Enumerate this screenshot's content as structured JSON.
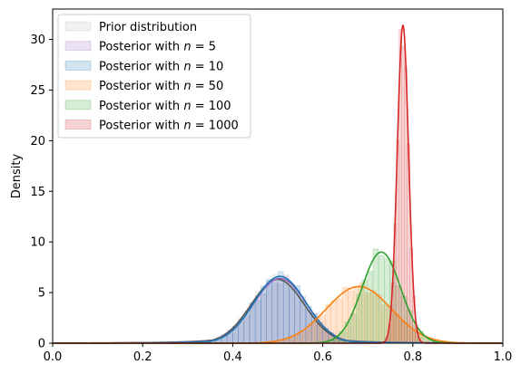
{
  "chart_data": {
    "type": "area",
    "title": "",
    "xlabel": "",
    "ylabel": "Density",
    "xlim": [
      0.0,
      1.0
    ],
    "ylim": [
      0,
      33
    ],
    "xticks": [
      0.0,
      0.2,
      0.4,
      0.6,
      0.8,
      1.0
    ],
    "xtick_labels": [
      "0.0",
      "0.2",
      "0.4",
      "0.6",
      "0.8",
      "1.0"
    ],
    "yticks": [
      0,
      5,
      10,
      15,
      20,
      25,
      30
    ],
    "ytick_labels": [
      "0",
      "5",
      "10",
      "15",
      "20",
      "25",
      "30"
    ],
    "grid": false,
    "legend_position": "top-left",
    "series": [
      {
        "name": "Prior distribution",
        "color": "#555555",
        "hist_color": "#bbbbbb",
        "mean": 0.5,
        "sd": 0.059,
        "tail_scale": 0.12,
        "peak": 6.3
      },
      {
        "name": "Posterior with n = 5",
        "color": "#9467bd",
        "hist_color": "#9467bd",
        "mean": 0.505,
        "sd": 0.059,
        "tail_scale": 0.1,
        "peak": 6.4
      },
      {
        "name": "Posterior with n = 10",
        "color": "#1f77b4",
        "hist_color": "#1f77b4",
        "mean": 0.505,
        "sd": 0.058,
        "tail_scale": 0.09,
        "peak": 6.6
      },
      {
        "name": "Posterior with n = 50",
        "color": "#ff7f0e",
        "hist_color": "#ff7f0e",
        "mean": 0.68,
        "sd": 0.072,
        "tail_scale": 0.0,
        "peak": 5.6
      },
      {
        "name": "Posterior with n = 100",
        "color": "#2ca02c",
        "hist_color": "#2ca02c",
        "mean": 0.73,
        "sd": 0.043,
        "tail_scale": 0.0,
        "peak": 9.0
      },
      {
        "name": "Posterior with n = 1000",
        "color": "#d62728",
        "hist_color": "#d62728",
        "mean": 0.778,
        "sd": 0.0125,
        "tail_scale": 0.0,
        "peak": 31.4
      }
    ],
    "legend_labels": [
      {
        "prefix": "Prior distribution",
        "n": ""
      },
      {
        "prefix": "Posterior with ",
        "n": "5"
      },
      {
        "prefix": "Posterior with ",
        "n": "10"
      },
      {
        "prefix": "Posterior with ",
        "n": "50"
      },
      {
        "prefix": "Posterior with ",
        "n": "100"
      },
      {
        "prefix": "Posterior with ",
        "n": "1000"
      }
    ]
  }
}
